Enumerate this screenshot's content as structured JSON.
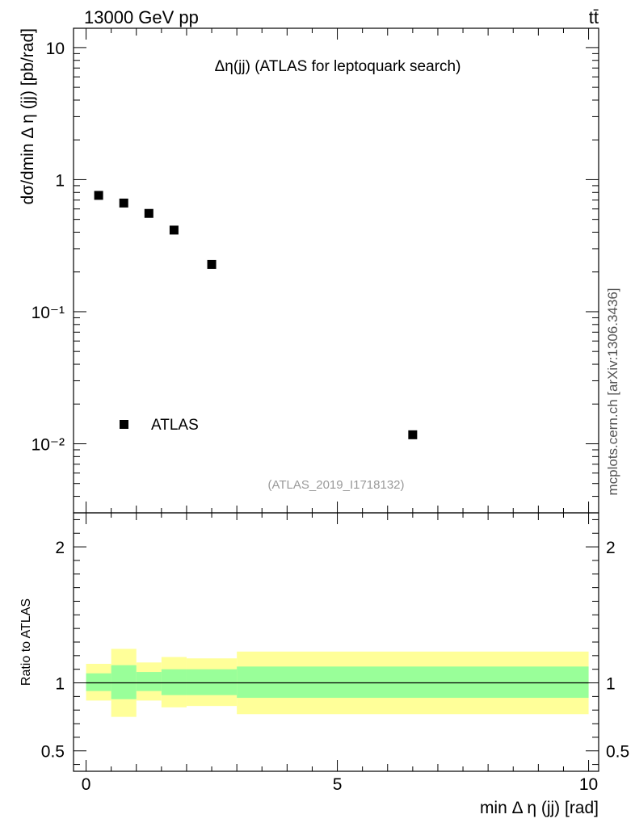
{
  "header": {
    "energy_label": "13000 GeV pp",
    "process_label": "tt̄"
  },
  "side_note": "mcplots.cern.ch [arXiv:1306.3436]",
  "chart_data": [
    {
      "type": "scatter",
      "panel": "main",
      "title": "Δη(jj) (ATLAS for leptoquark search)",
      "ylabel": "dσ/dmin Δ η (jj) [pb/rad]",
      "y_scale": "log",
      "ylim": [
        0.003,
        14
      ],
      "xlim": [
        -0.25,
        10.2
      ],
      "y_ticks": [
        {
          "value": 10,
          "label": "10"
        },
        {
          "value": 1,
          "label": "1"
        },
        {
          "value": 0.1,
          "label": "10⁻¹"
        },
        {
          "value": 0.01,
          "label": "10⁻²"
        }
      ],
      "series": [
        {
          "name": "ATLAS",
          "color": "#000000",
          "marker": "square",
          "x": [
            0.25,
            0.75,
            1.25,
            1.75,
            2.5,
            6.5
          ],
          "y": [
            0.76,
            0.665,
            0.555,
            0.415,
            0.228,
            0.0117
          ]
        }
      ],
      "legend_position": "bottom-left",
      "annotation": "(ATLAS_2019_I1718132)",
      "grid": false
    },
    {
      "type": "area",
      "panel": "ratio",
      "ylabel": "Ratio to ATLAS",
      "xlabel": "min Δ η (jj) [rad]",
      "ylim": [
        0.35,
        2.25
      ],
      "xlim": [
        -0.25,
        10.2
      ],
      "x_ticks": [
        {
          "value": 0,
          "label": "0"
        },
        {
          "value": 5,
          "label": "5"
        },
        {
          "value": 10,
          "label": "10"
        }
      ],
      "y_ticks": [
        {
          "value": 2,
          "label": "2"
        },
        {
          "value": 1,
          "label": "1"
        },
        {
          "value": 0.5,
          "label": "0.5"
        }
      ],
      "reference_line": 1,
      "bands": [
        {
          "color": "#ffff99",
          "bins": [
            {
              "x": [
                0,
                0.5
              ],
              "lo": 0.87,
              "hi": 1.14
            },
            {
              "x": [
                0.5,
                1.0
              ],
              "lo": 0.75,
              "hi": 1.25
            },
            {
              "x": [
                1.0,
                1.5
              ],
              "lo": 0.87,
              "hi": 1.15
            },
            {
              "x": [
                1.5,
                2.0
              ],
              "lo": 0.82,
              "hi": 1.19
            },
            {
              "x": [
                2.0,
                3.0
              ],
              "lo": 0.83,
              "hi": 1.18
            },
            {
              "x": [
                3.0,
                10.0
              ],
              "lo": 0.77,
              "hi": 1.23
            }
          ]
        },
        {
          "color": "#99ff99",
          "bins": [
            {
              "x": [
                0,
                0.5
              ],
              "lo": 0.94,
              "hi": 1.07
            },
            {
              "x": [
                0.5,
                1.0
              ],
              "lo": 0.88,
              "hi": 1.13
            },
            {
              "x": [
                1.0,
                1.5
              ],
              "lo": 0.94,
              "hi": 1.08
            },
            {
              "x": [
                1.5,
                2.0
              ],
              "lo": 0.91,
              "hi": 1.1
            },
            {
              "x": [
                2.0,
                3.0
              ],
              "lo": 0.91,
              "hi": 1.1
            },
            {
              "x": [
                3.0,
                10.0
              ],
              "lo": 0.89,
              "hi": 1.12
            }
          ]
        }
      ]
    }
  ]
}
